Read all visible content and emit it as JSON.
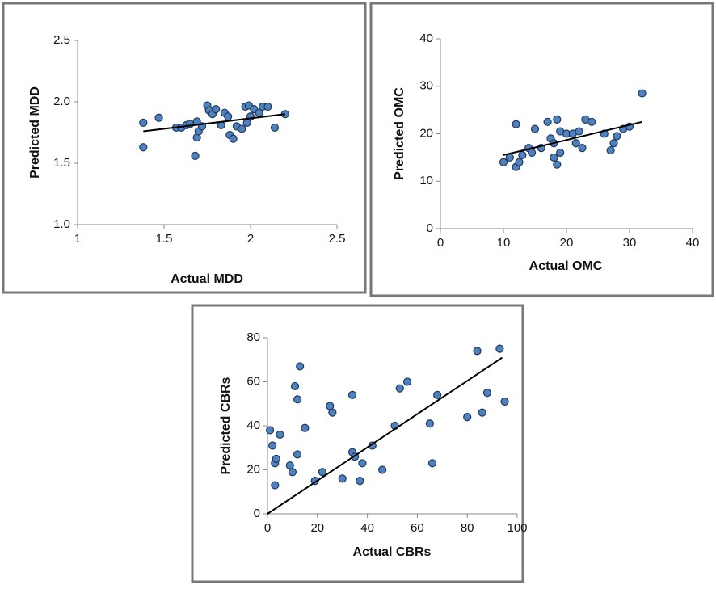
{
  "chart_data": [
    {
      "type": "scatter",
      "x_label": "Actual MDD",
      "y_label": "Predicted MDD",
      "color": "#4f81bd",
      "xlim": [
        1,
        2.5
      ],
      "ylim": [
        1,
        2.5
      ],
      "xticks": [
        1,
        1.5,
        2,
        2.5
      ],
      "yticks": [
        {
          "value": 1,
          "label": "1.0"
        },
        1.5,
        {
          "value": 2,
          "label": "2.0"
        },
        2.5
      ],
      "x": [
        1.38,
        1.38,
        1.47,
        1.57,
        1.6,
        1.63,
        1.65,
        1.68,
        1.69,
        1.69,
        1.7,
        1.72,
        1.75,
        1.76,
        1.78,
        1.8,
        1.83,
        1.85,
        1.87,
        1.88,
        1.9,
        1.92,
        1.95,
        1.97,
        1.98,
        1.99,
        2.0,
        2.02,
        2.05,
        2.07,
        2.1,
        2.14,
        2.2
      ],
      "values": [
        1.63,
        1.83,
        1.87,
        1.79,
        1.79,
        1.81,
        1.82,
        1.56,
        1.71,
        1.84,
        1.76,
        1.8,
        1.97,
        1.93,
        1.9,
        1.94,
        1.81,
        1.91,
        1.88,
        1.73,
        1.7,
        1.8,
        1.78,
        1.96,
        1.83,
        1.97,
        1.88,
        1.94,
        1.91,
        1.96,
        1.96,
        1.79,
        1.9
      ],
      "trendline": {
        "x": [
          1.38,
          2.2
        ],
        "y": [
          1.76,
          1.9
        ]
      }
    },
    {
      "type": "scatter",
      "x_label": "Actual OMC",
      "y_label": "Predicted OMC",
      "color": "#4f81bd",
      "xlim": [
        0,
        40
      ],
      "ylim": [
        0,
        40
      ],
      "xticks": [
        0,
        10,
        20,
        30,
        40
      ],
      "yticks": [
        0,
        10,
        20,
        30,
        40
      ],
      "x": [
        10,
        11,
        12,
        12,
        12.5,
        13,
        14,
        14.5,
        15,
        16,
        17,
        17.5,
        18,
        18,
        18.5,
        18.5,
        19,
        19,
        20,
        21,
        21.5,
        22,
        22.5,
        23,
        24,
        26,
        27,
        27.5,
        28,
        29,
        30,
        32
      ],
      "values": [
        14,
        15,
        13,
        22,
        14,
        15.5,
        17,
        16,
        21,
        17,
        22.5,
        19,
        15,
        18,
        23,
        13.5,
        20.5,
        16,
        20,
        20,
        18,
        20.5,
        17,
        23,
        22.5,
        20,
        16.5,
        18,
        19.5,
        21,
        21.5,
        28.5
      ],
      "trendline": {
        "x": [
          10,
          32
        ],
        "y": [
          15.5,
          22.5
        ]
      }
    },
    {
      "type": "scatter",
      "x_label": "Actual CBRs",
      "y_label": "Predicted CBRs",
      "color": "#4f81bd",
      "xlim": [
        0,
        100
      ],
      "ylim": [
        0,
        80
      ],
      "xticks": [
        0,
        20,
        40,
        60,
        80,
        100
      ],
      "yticks": [
        0,
        20,
        40,
        60,
        80
      ],
      "x": [
        1,
        2,
        3,
        3,
        3.5,
        5,
        9,
        10,
        11,
        12,
        12,
        13,
        15,
        19,
        22,
        25,
        26,
        30,
        34,
        34,
        35,
        37,
        38,
        42,
        46,
        51,
        53,
        56,
        65,
        66,
        68,
        80,
        84,
        86,
        88,
        93,
        95
      ],
      "values": [
        38,
        31,
        13,
        23,
        25,
        36,
        22,
        19,
        58,
        27,
        52,
        67,
        39,
        15,
        19,
        49,
        46,
        16,
        54,
        28,
        26,
        15,
        23,
        31,
        20,
        40,
        57,
        60,
        41,
        23,
        54,
        44,
        74,
        46,
        55,
        75,
        51
      ],
      "trendline": {
        "x": [
          0,
          94
        ],
        "y": [
          0,
          71
        ]
      }
    }
  ]
}
